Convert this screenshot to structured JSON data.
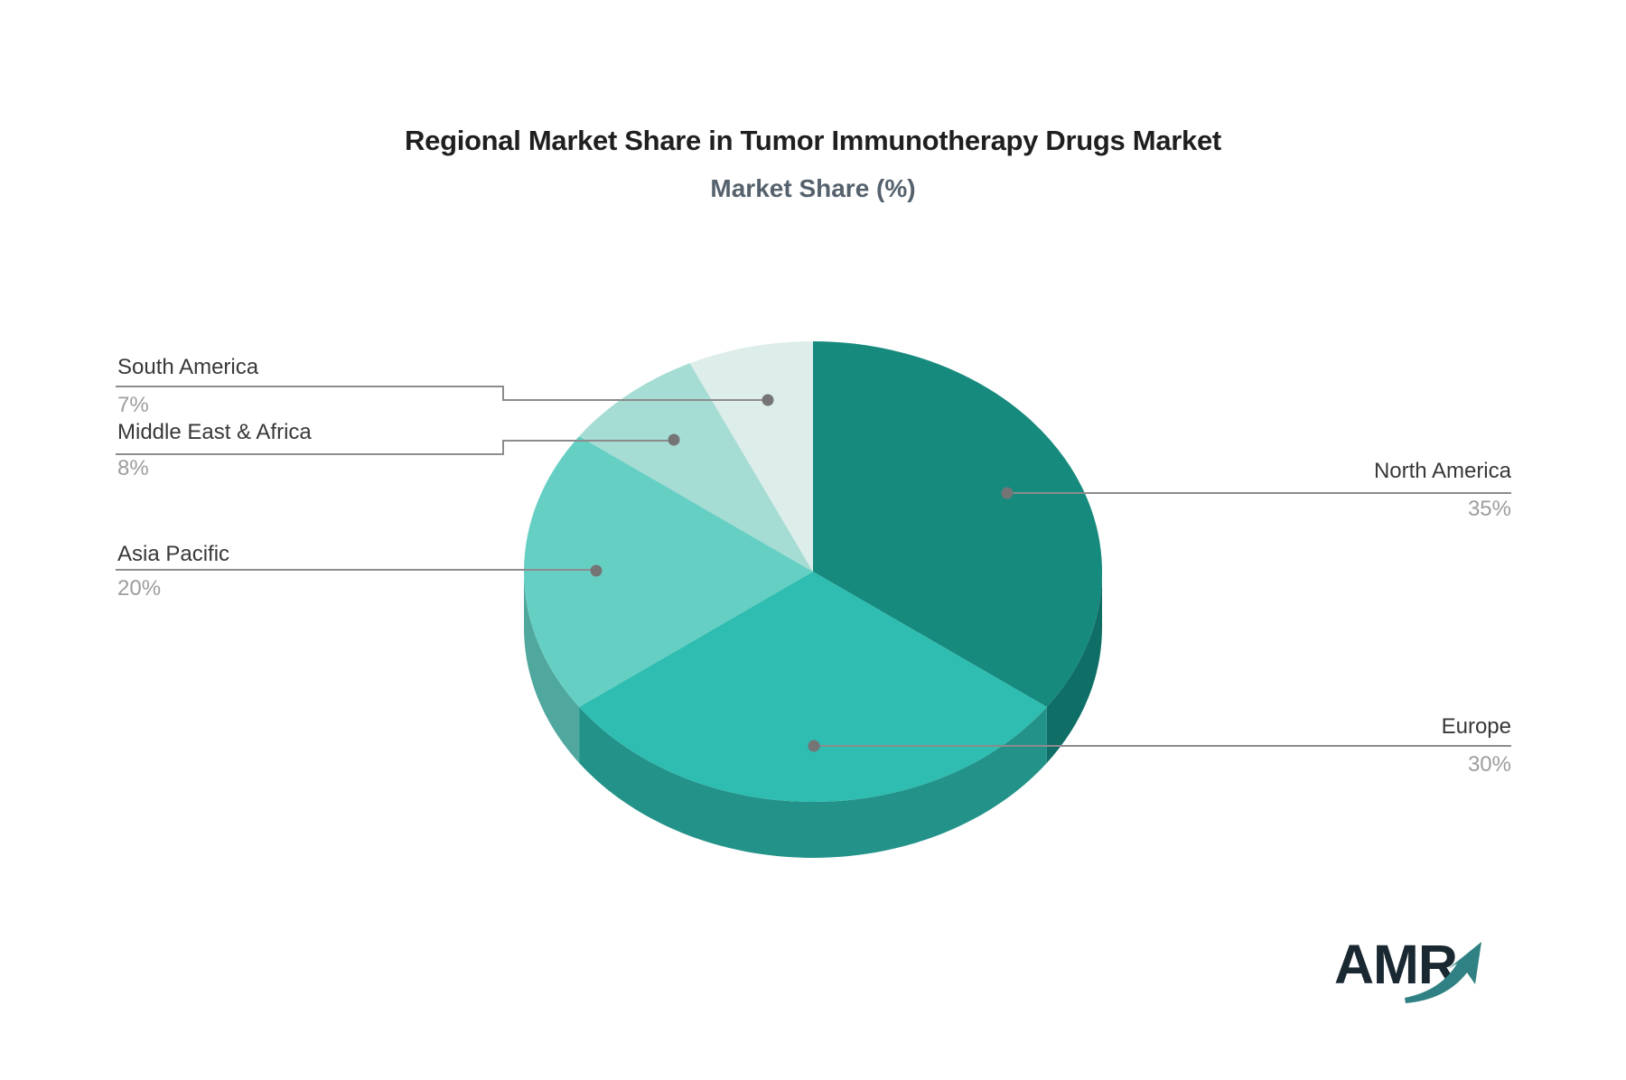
{
  "header": {
    "title": "Regional Market Share in Tumor Immunotherapy Drugs Market",
    "subtitle": "Market Share (%)"
  },
  "logo": {
    "text": "AMR"
  },
  "chart_data": {
    "type": "pie",
    "title": "Regional Market Share in Tumor Immunotherapy Drugs Market",
    "subtitle": "Market Share (%)",
    "unit": "%",
    "effect": "3d",
    "start_angle_deg": 0,
    "direction": "clockwise",
    "legend_position": "callout-labels",
    "slices": [
      {
        "label": "North America",
        "value": 35,
        "pct_label": "35%",
        "color": "#178a7e",
        "side_color": "#0f6e66",
        "label_side": "right"
      },
      {
        "label": "Europe",
        "value": 30,
        "pct_label": "30%",
        "color": "#2ebdb0",
        "side_color": "#23938a",
        "label_side": "right"
      },
      {
        "label": "Asia Pacific",
        "value": 20,
        "pct_label": "20%",
        "color": "#66cfc4",
        "side_color": "#4fa79e",
        "label_side": "left"
      },
      {
        "label": "Middle East & Africa",
        "value": 8,
        "pct_label": "8%",
        "color": "#a5dcd4",
        "side_color": "#84b8b1",
        "label_side": "left"
      },
      {
        "label": "South America",
        "value": 7,
        "pct_label": "7%",
        "color": "#dcedea",
        "side_color": "#b3c6c3",
        "label_side": "left"
      }
    ],
    "style": {
      "leader_line_color": "#8c8c8c",
      "leader_dot_color": "#757575",
      "label_text_color": "#383838",
      "pct_text_color": "#9d9d9d",
      "background": "#ffffff",
      "logo_text_color": "#192831",
      "logo_arrow_color": "#2f8183"
    }
  }
}
